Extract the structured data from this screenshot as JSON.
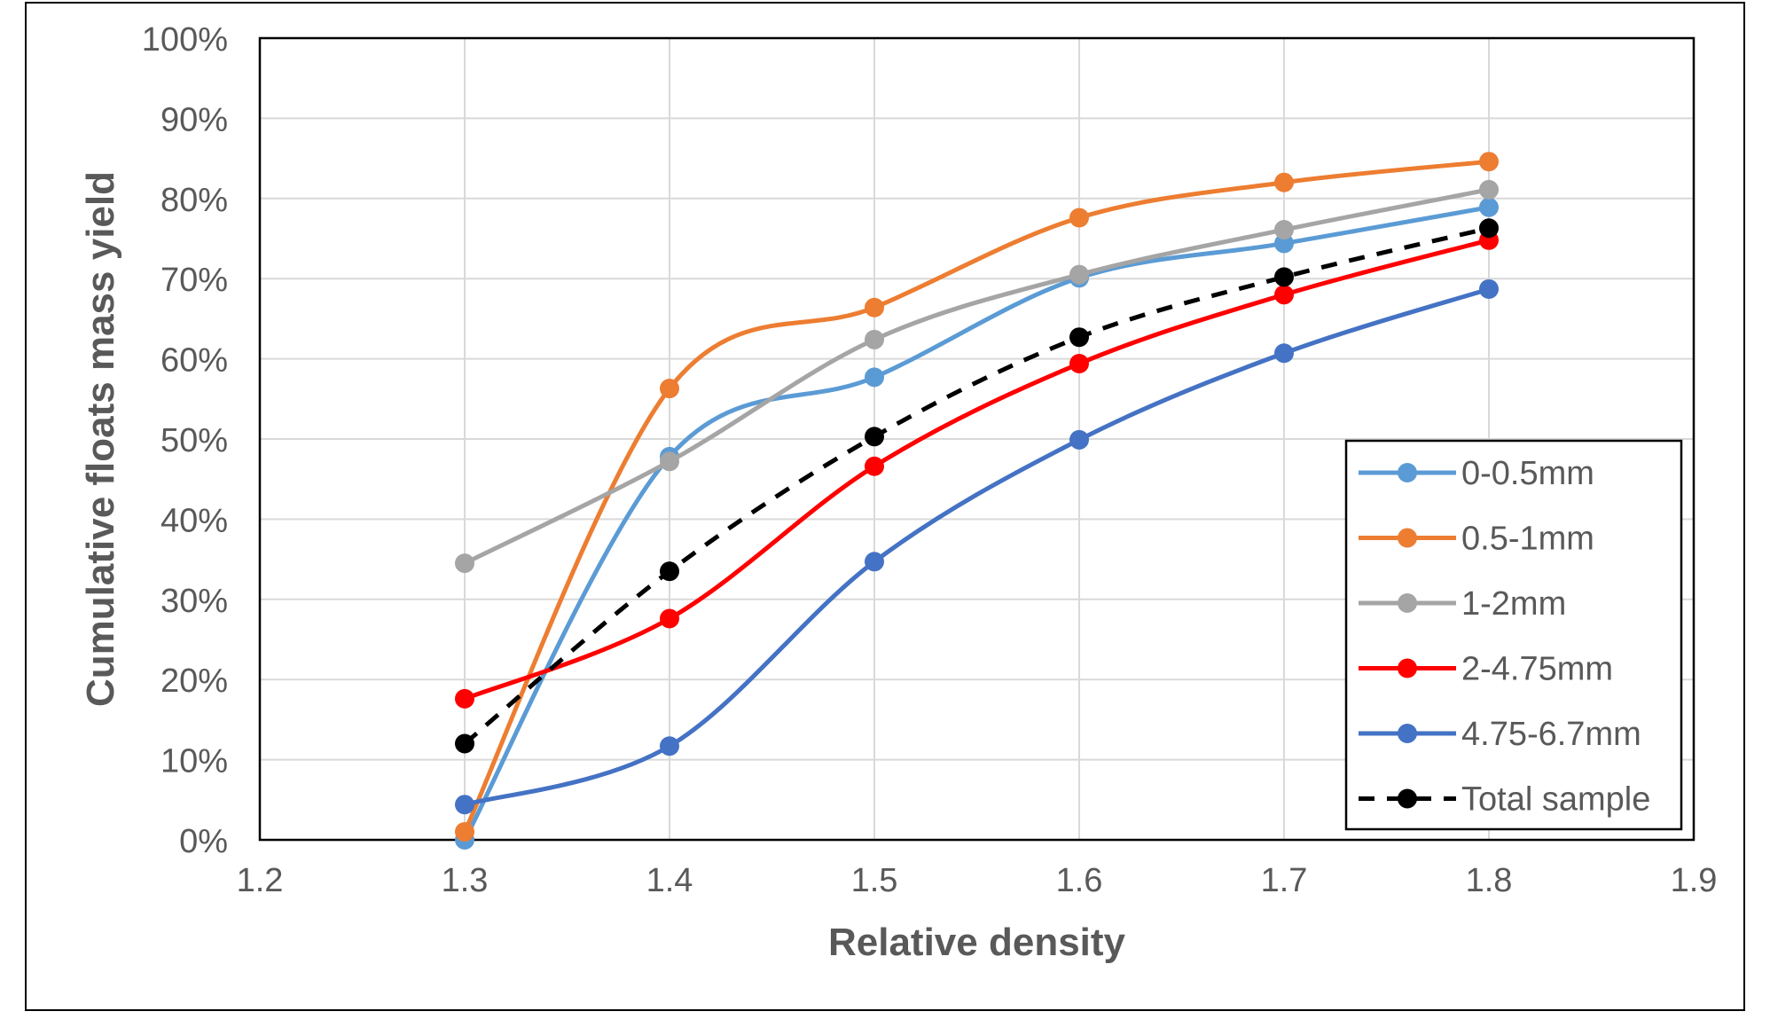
{
  "chart_data": {
    "type": "line",
    "smooth": true,
    "xlabel": "Relative density",
    "ylabel": "Cumulative floats mass yield",
    "xlim": [
      1.2,
      1.9
    ],
    "ylim": [
      0,
      100
    ],
    "x_ticks": [
      1.2,
      1.3,
      1.4,
      1.5,
      1.6,
      1.7,
      1.8,
      1.9
    ],
    "x_tick_labels": [
      "1.2",
      "1.3",
      "1.4",
      "1.5",
      "1.6",
      "1.7",
      "1.8",
      "1.9"
    ],
    "y_ticks": [
      0,
      10,
      20,
      30,
      40,
      50,
      60,
      70,
      80,
      90,
      100
    ],
    "y_tick_labels": [
      "0%",
      "10%",
      "20%",
      "30%",
      "40%",
      "50%",
      "60%",
      "70%",
      "80%",
      "90%",
      "100%"
    ],
    "grid": true,
    "legend_position": "bottom-right",
    "x": [
      1.3,
      1.4,
      1.5,
      1.6,
      1.7,
      1.8
    ],
    "series": [
      {
        "name": "0-0.5mm",
        "color": "#5B9BD5",
        "dash": "solid",
        "values": [
          0.0,
          47.8,
          57.7,
          70.1,
          74.4,
          78.9
        ]
      },
      {
        "name": "0.5-1mm",
        "color": "#ED7D31",
        "dash": "solid",
        "values": [
          1.0,
          56.3,
          66.4,
          77.6,
          82.0,
          84.6
        ]
      },
      {
        "name": "1-2mm",
        "color": "#A5A5A5",
        "dash": "solid",
        "values": [
          34.5,
          47.2,
          62.4,
          70.5,
          76.1,
          81.1
        ]
      },
      {
        "name": "2-4.75mm",
        "color": "#FF0000",
        "dash": "solid",
        "values": [
          17.6,
          27.6,
          46.6,
          59.4,
          68.0,
          74.8
        ]
      },
      {
        "name": "4.75-6.7mm",
        "color": "#4472C4",
        "dash": "solid",
        "values": [
          4.4,
          11.7,
          34.7,
          49.9,
          60.7,
          68.7
        ]
      },
      {
        "name": "Total sample",
        "color": "#000000",
        "dash": "dashed",
        "values": [
          12.0,
          33.5,
          50.3,
          62.7,
          70.2,
          76.3
        ]
      }
    ]
  }
}
